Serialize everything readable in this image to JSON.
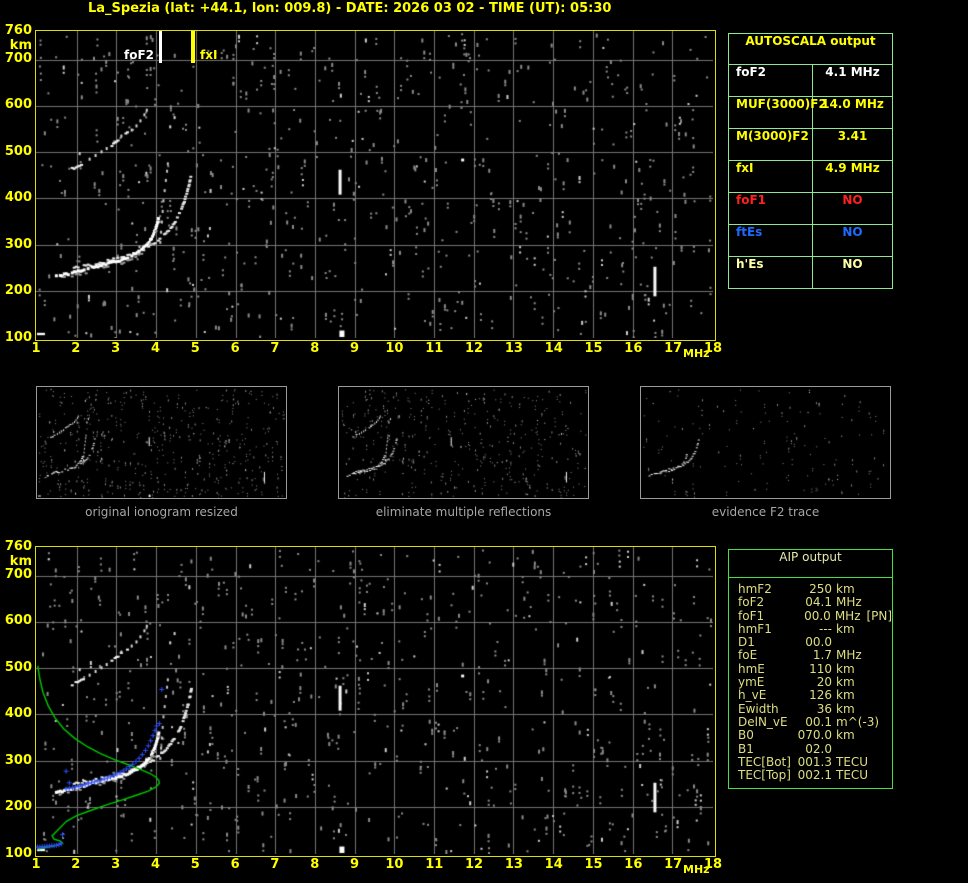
{
  "title": "La_Spezia (lat: +44.1, lon: 009.8) - DATE: 2026 03 02 - TIME (UT): 05:30",
  "colors": {
    "title": "#FFFF00",
    "axis": "#FFFF00",
    "frame": "#DCDC00",
    "grid": "#757575",
    "trace": "#FFFFFF",
    "profile_green": "#00C800",
    "scaled_blue": "#3050FF",
    "autoscala_border": "#8CE88C",
    "aip_border": "#44E044",
    "red": "#FF2020",
    "blue": "#1E6BFF",
    "pale_yellow": "#FFFFA8",
    "caption_gray": "#A6A6A6"
  },
  "autoscala": {
    "header": "AUTOSCALA output",
    "rows": [
      {
        "label": "foF2",
        "value": "4.1 MHz",
        "color": "white"
      },
      {
        "label": "MUF(3000)F2",
        "value": "14.0 MHz",
        "color": "yellow"
      },
      {
        "label": "M(3000)F2",
        "value": "3.41",
        "color": "yellow"
      },
      {
        "label": "fxI",
        "value": "4.9 MHz",
        "color": "yellow"
      },
      {
        "label": "foF1",
        "value": "NO",
        "color": "red"
      },
      {
        "label": "ftEs",
        "value": "NO",
        "color": "blue"
      },
      {
        "label": "h'Es",
        "value": "NO",
        "color": "pale"
      }
    ]
  },
  "aip": {
    "header": "AIP output",
    "rows": [
      {
        "label": "hmF2",
        "value": "250",
        "unit": "km",
        "note": ""
      },
      {
        "label": "foF2",
        "value": "04.1",
        "unit": "MHz",
        "note": ""
      },
      {
        "label": "foF1",
        "value": "00.0",
        "unit": "MHz",
        "note": "[PN]"
      },
      {
        "label": "hmF1",
        "value": "---",
        "unit": "km",
        "note": ""
      },
      {
        "label": "D1",
        "value": "00.0",
        "unit": "",
        "note": ""
      },
      {
        "label": "foE",
        "value": "1.7",
        "unit": "MHz",
        "note": ""
      },
      {
        "label": "hmE",
        "value": "110",
        "unit": "km",
        "note": ""
      },
      {
        "label": "ymE",
        "value": "20",
        "unit": "km",
        "note": ""
      },
      {
        "label": "h_vE",
        "value": "126",
        "unit": "km",
        "note": ""
      },
      {
        "label": "Ewidth",
        "value": "36",
        "unit": "km",
        "note": ""
      },
      {
        "label": "DelN_vE",
        "value": "00.1",
        "unit": "m^(-3)",
        "note": ""
      },
      {
        "label": "B0",
        "value": "070.0",
        "unit": "km",
        "note": ""
      },
      {
        "label": "B1",
        "value": "02.0",
        "unit": "",
        "note": ""
      },
      {
        "label": "TEC[Bot]",
        "value": "001.3",
        "unit": "TECU",
        "note": ""
      },
      {
        "label": "TEC[Top]",
        "value": "002.1",
        "unit": "TECU",
        "note": ""
      }
    ]
  },
  "thumbnails": [
    {
      "caption": "original ionogram resized"
    },
    {
      "caption": "eliminate multiple reflections"
    },
    {
      "caption": "evidence F2 trace"
    }
  ],
  "chart_data": {
    "type": "scatter",
    "title": "Ionogram: virtual height (km) vs frequency (MHz)",
    "x_axis": {
      "label": "MHz",
      "min": 1,
      "max": 18,
      "ticks": [
        1,
        2,
        3,
        4,
        5,
        6,
        7,
        8,
        9,
        10,
        11,
        12,
        13,
        14,
        15,
        16,
        17,
        18
      ]
    },
    "y_axis": {
      "label": "km",
      "min": 100,
      "max": 760,
      "ticks": [
        760,
        700,
        600,
        500,
        400,
        300,
        200,
        100
      ]
    },
    "markers": [
      {
        "name": "foF2",
        "mhz": 4.1,
        "color": "#FFFFFF",
        "label_side": "left"
      },
      {
        "name": "fxI",
        "mhz": 4.9,
        "color": "#FFFF00",
        "label_side": "right"
      }
    ],
    "traces": {
      "o_trace": [
        [
          1.45,
          234
        ],
        [
          1.6,
          237
        ],
        [
          1.8,
          241
        ],
        [
          2.0,
          246
        ],
        [
          2.2,
          250
        ],
        [
          2.4,
          255
        ],
        [
          2.6,
          259
        ],
        [
          2.8,
          263
        ],
        [
          3.0,
          267
        ],
        [
          3.15,
          272
        ],
        [
          3.3,
          277
        ],
        [
          3.45,
          284
        ],
        [
          3.6,
          292
        ],
        [
          3.72,
          302
        ],
        [
          3.82,
          313
        ],
        [
          3.9,
          326
        ],
        [
          3.96,
          340
        ],
        [
          4.01,
          354
        ],
        [
          4.04,
          365
        ]
      ],
      "x_trace": [
        [
          1.9,
          252
        ],
        [
          2.2,
          257
        ],
        [
          2.5,
          262
        ],
        [
          2.8,
          268
        ],
        [
          3.1,
          274
        ],
        [
          3.4,
          282
        ],
        [
          3.65,
          292
        ],
        [
          3.9,
          304
        ],
        [
          4.1,
          317
        ],
        [
          4.28,
          332
        ],
        [
          4.42,
          349
        ],
        [
          4.55,
          369
        ],
        [
          4.66,
          392
        ],
        [
          4.75,
          417
        ],
        [
          4.82,
          442
        ],
        [
          4.86,
          462
        ]
      ],
      "o_spread": [
        [
          4.08,
          308
        ],
        [
          4.1,
          330
        ],
        [
          4.12,
          352
        ],
        [
          4.14,
          375
        ],
        [
          4.16,
          398
        ],
        [
          4.19,
          420
        ],
        [
          4.22,
          442
        ],
        [
          4.25,
          462
        ],
        [
          4.27,
          478
        ],
        [
          5.28,
          322
        ],
        [
          5.33,
          338
        ]
      ],
      "second_hop_dashes": [
        [
          [
            1.85,
            466
          ],
          [
            2.18,
            481
          ]
        ],
        [
          [
            2.85,
            517
          ],
          [
            3.28,
            547
          ]
        ]
      ],
      "second_hop_dots": [
        [
          2.3,
          488
        ],
        [
          2.45,
          496
        ],
        [
          2.6,
          504
        ],
        [
          2.73,
          511
        ],
        [
          2.05,
          500
        ],
        [
          3.1,
          538
        ],
        [
          3.36,
          551
        ],
        [
          3.48,
          560
        ],
        [
          3.58,
          571
        ],
        [
          3.68,
          584
        ],
        [
          3.74,
          594
        ],
        [
          4.33,
          558
        ],
        [
          4.44,
          578
        ]
      ],
      "bright_strips": [
        {
          "mhz": 8.62,
          "km1": 408,
          "km2": 462
        },
        {
          "mhz": 16.55,
          "km1": 188,
          "km2": 252
        }
      ],
      "bright_blobs": [
        {
          "mhz": 8.68,
          "km1": 100,
          "km2": 114,
          "w": 5
        },
        {
          "mhz": 11.72,
          "km1": 480,
          "km2": 486,
          "w": 3
        },
        {
          "mhz": 1.1,
          "km1": 104,
          "km2": 109,
          "w": 8
        }
      ]
    },
    "noise": {
      "base_color": "#8A8A8A",
      "bright_color": "#CFCFCF"
    },
    "profile": {
      "color": "#00C800",
      "points": [
        [
          1.02,
          505
        ],
        [
          1.07,
          477
        ],
        [
          1.15,
          448
        ],
        [
          1.28,
          419
        ],
        [
          1.45,
          393
        ],
        [
          1.67,
          369
        ],
        [
          1.95,
          348
        ],
        [
          2.27,
          330
        ],
        [
          2.6,
          315
        ],
        [
          2.95,
          302
        ],
        [
          3.3,
          291
        ],
        [
          3.6,
          281
        ],
        [
          3.85,
          272
        ],
        [
          4.0,
          264
        ],
        [
          4.07,
          257
        ],
        [
          4.08,
          251
        ],
        [
          4.0,
          243
        ],
        [
          3.8,
          234
        ],
        [
          3.5,
          225
        ],
        [
          3.15,
          215
        ],
        [
          2.75,
          204
        ],
        [
          2.35,
          192
        ],
        [
          2.0,
          181
        ],
        [
          1.75,
          169
        ],
        [
          1.55,
          152
        ],
        [
          1.38,
          137
        ],
        [
          1.43,
          130
        ],
        [
          1.58,
          126
        ],
        [
          1.63,
          123
        ],
        [
          1.56,
          119
        ],
        [
          1.42,
          115
        ],
        [
          1.22,
          112
        ],
        [
          1.02,
          109
        ]
      ]
    },
    "scaled_points": {
      "color": "#3050FF",
      "f_trace": [
        [
          1.72,
          240
        ],
        [
          1.8,
          241
        ],
        [
          1.88,
          242
        ],
        [
          1.96,
          244
        ],
        [
          2.04,
          245
        ],
        [
          2.12,
          247
        ],
        [
          2.2,
          249
        ],
        [
          2.28,
          251
        ],
        [
          2.36,
          253
        ],
        [
          2.44,
          255
        ],
        [
          2.52,
          257
        ],
        [
          2.6,
          259
        ],
        [
          2.68,
          261
        ],
        [
          2.76,
          263
        ],
        [
          2.84,
          266
        ],
        [
          2.92,
          269
        ],
        [
          3.0,
          272
        ],
        [
          3.08,
          275
        ],
        [
          3.16,
          279
        ],
        [
          3.24,
          283
        ],
        [
          3.32,
          288
        ],
        [
          3.4,
          293
        ],
        [
          3.48,
          299
        ],
        [
          3.56,
          306
        ],
        [
          3.64,
          314
        ],
        [
          3.72,
          323
        ],
        [
          3.79,
          333
        ],
        [
          3.85,
          344
        ],
        [
          3.91,
          355
        ],
        [
          3.96,
          366
        ],
        [
          4.0,
          376
        ],
        [
          4.07,
          381
        ],
        [
          4.13,
          455
        ],
        [
          1.8,
          253
        ],
        [
          1.72,
          278
        ],
        [
          1.63,
          141
        ]
      ],
      "e_trace": [
        [
          1.0,
          114
        ],
        [
          1.06,
          114
        ],
        [
          1.12,
          115
        ],
        [
          1.18,
          115
        ],
        [
          1.24,
          116
        ],
        [
          1.3,
          116
        ],
        [
          1.36,
          117
        ],
        [
          1.42,
          117
        ],
        [
          1.48,
          118
        ],
        [
          1.54,
          119
        ],
        [
          1.6,
          121
        ]
      ]
    },
    "views": {
      "top": {
        "seed": 11,
        "noise_count": 640,
        "grid": true,
        "trace_o": true,
        "trace_x": true,
        "second_hop": true,
        "spread": true,
        "strips": true,
        "blobs": true,
        "profile": false,
        "scaled": false
      },
      "bottom": {
        "seed": 23,
        "noise_count": 620,
        "grid": true,
        "trace_o": true,
        "trace_x": true,
        "second_hop": true,
        "spread": true,
        "strips": true,
        "blobs": true,
        "profile": true,
        "scaled": true
      },
      "thumb1": {
        "seed": 31,
        "noise_count": 430,
        "grid": false,
        "trace_o": true,
        "trace_x": true,
        "second_hop": true,
        "spread": true,
        "strips": true,
        "blobs": true,
        "profile": false,
        "scaled": false
      },
      "thumb2": {
        "seed": 47,
        "noise_count": 340,
        "grid": false,
        "trace_o": true,
        "trace_x": true,
        "second_hop": true,
        "spread": true,
        "strips": true,
        "blobs": false,
        "profile": false,
        "scaled": false
      },
      "thumb3": {
        "seed": 59,
        "noise_count": 130,
        "grid": false,
        "trace_o": true,
        "trace_x": true,
        "second_hop": false,
        "spread": false,
        "strips": false,
        "blobs": false,
        "profile": false,
        "scaled": false
      }
    }
  }
}
